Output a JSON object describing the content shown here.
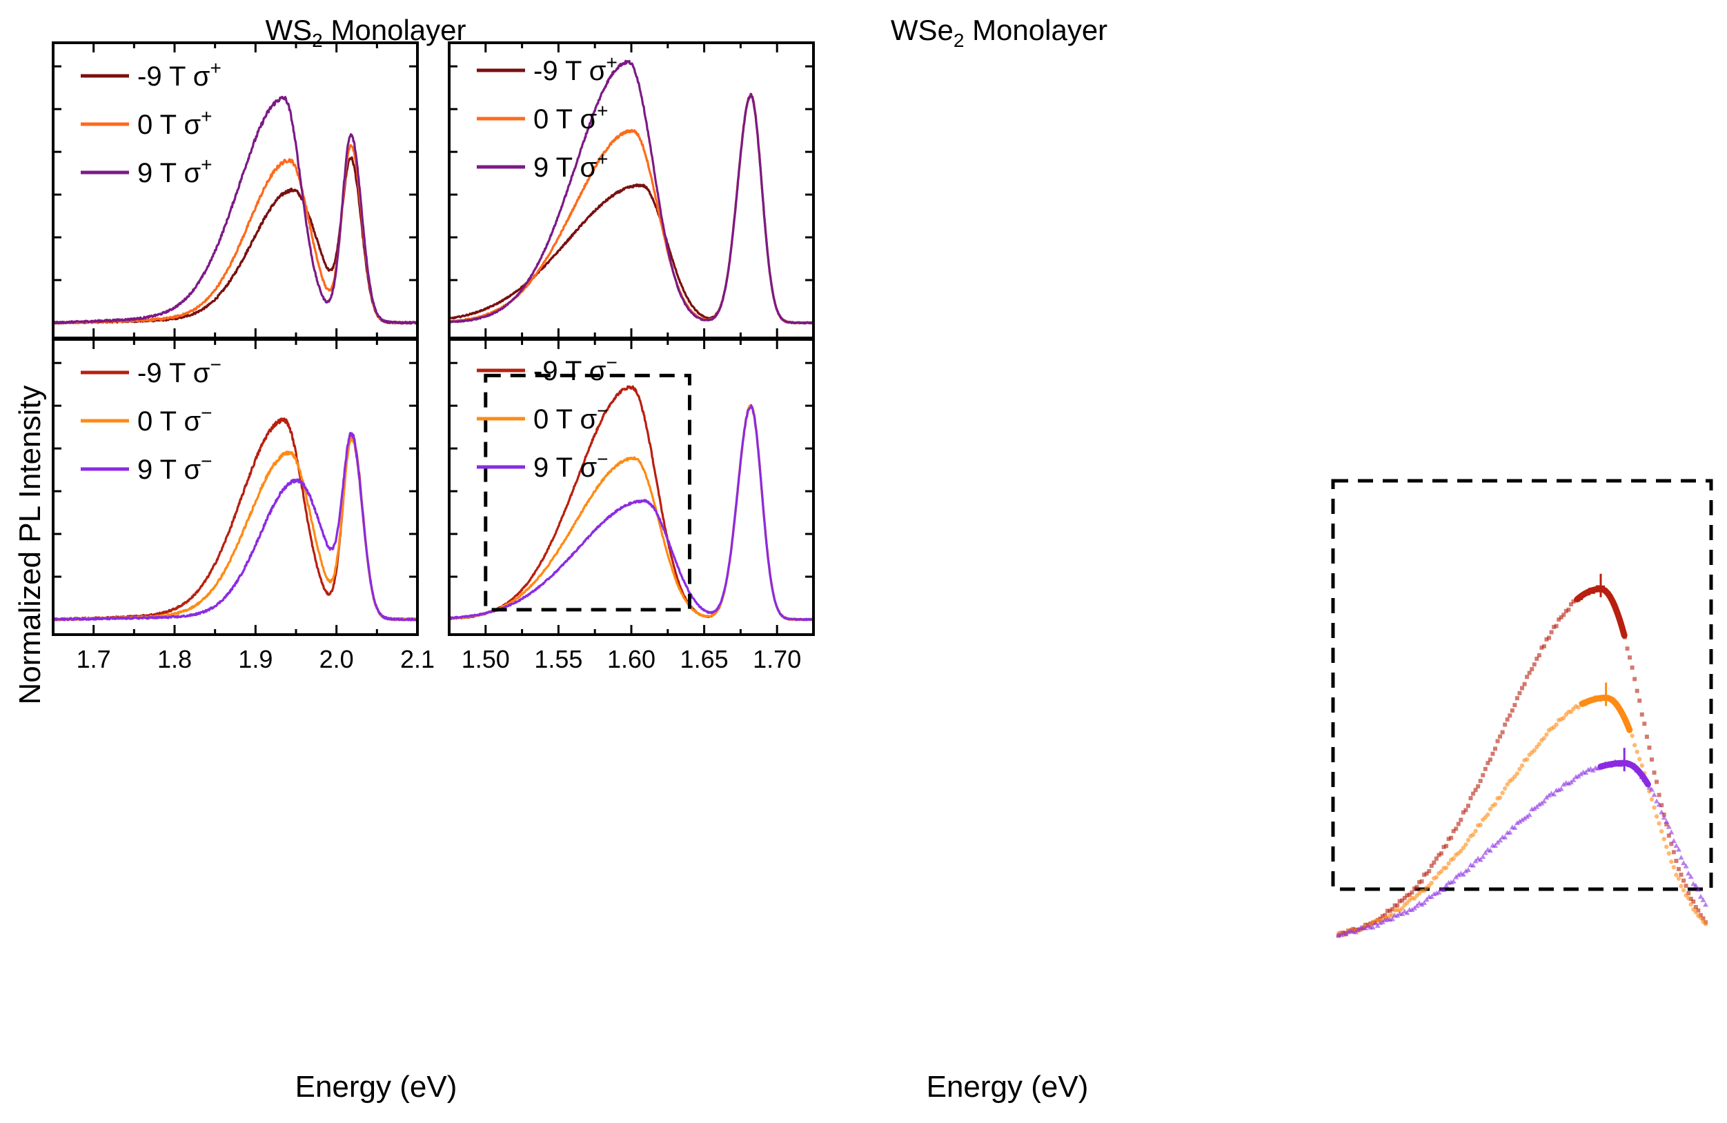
{
  "colors": {
    "m9p": "#7a0f0f",
    "zp": "#ff6a1a",
    "p9p": "#7c1a86",
    "m9m": "#b81f10",
    "zm": "#ff8a14",
    "p9m": "#8a2be2"
  },
  "chart_data": [
    {
      "id": "ws2_top",
      "type": "line",
      "title": "WS2 Monolayer",
      "title_main": "WS",
      "title_sub": "2",
      "title_rest": " Monolayer",
      "xlabel": "Energy (eV)",
      "ylabel": "Normalized PL Intensity",
      "xlim": [
        1.65,
        2.1
      ],
      "ylim": [
        0,
        1.1
      ],
      "xticks": [
        1.7,
        1.8,
        1.9,
        2.0,
        2.1
      ],
      "xtick_labels": [
        "1.7",
        "1.8",
        "1.9",
        "2.0",
        "2.1"
      ],
      "legend_position": "top-left",
      "series": [
        {
          "name": "-9 T σ+",
          "label_main": "-9 T σ",
          "label_sup": "+",
          "color_key": "m9p",
          "peaks": [
            {
              "center": 1.946,
              "amp": 0.54,
              "wl": 0.05,
              "wr": 0.03
            },
            {
              "center": 2.018,
              "amp": 0.66,
              "wl": 0.011,
              "wr": 0.013
            }
          ],
          "tail": 0.03
        },
        {
          "name": "0 T σ+",
          "label_main": "0 T σ",
          "label_sup": "+",
          "color_key": "zp",
          "peaks": [
            {
              "center": 1.942,
              "amp": 0.66,
              "wl": 0.05,
              "wr": 0.024
            },
            {
              "center": 2.018,
              "amp": 0.74,
              "wl": 0.011,
              "wr": 0.013
            }
          ],
          "tail": 0.04
        },
        {
          "name": "9 T σ+",
          "label_main": "9 T σ",
          "label_sup": "+",
          "color_key": "p9p",
          "peaks": [
            {
              "center": 1.935,
              "amp": 0.91,
              "wl": 0.055,
              "wr": 0.021
            },
            {
              "center": 2.018,
              "amp": 0.78,
              "wl": 0.011,
              "wr": 0.013
            }
          ],
          "tail": 0.06
        }
      ]
    },
    {
      "id": "wse2_top",
      "type": "line",
      "title": "WSe2 Monolayer",
      "title_main": "WSe",
      "title_sub": "2",
      "title_rest": " Monolayer",
      "xlabel": "Energy (eV)",
      "xlim": [
        1.475,
        1.725
      ],
      "ylim": [
        0,
        1.1
      ],
      "xticks": [
        1.5,
        1.55,
        1.6,
        1.65,
        1.7
      ],
      "xtick_labels": [
        "1.50",
        "1.55",
        "1.60",
        "1.65",
        "1.70"
      ],
      "legend_position": "top-left",
      "series": [
        {
          "name": "-9 T σ+",
          "label_main": "-9 T σ",
          "label_sup": "+",
          "color_key": "m9p",
          "peaks": [
            {
              "center": 1.607,
              "amp": 0.58,
              "wl": 0.05,
              "wr": 0.017
            },
            {
              "center": 1.682,
              "amp": 0.96,
              "wl": 0.009,
              "wr": 0.0075
            }
          ],
          "tail": 0.0
        },
        {
          "name": "0 T σ+",
          "label_main": "0 T σ",
          "label_sup": "+",
          "color_key": "zp",
          "peaks": [
            {
              "center": 1.601,
              "amp": 0.81,
              "wl": 0.04,
              "wr": 0.017
            },
            {
              "center": 1.682,
              "amp": 0.96,
              "wl": 0.009,
              "wr": 0.0075
            }
          ],
          "tail": 0.0
        },
        {
          "name": "9 T σ+",
          "label_main": "9 T σ",
          "label_sup": "+",
          "color_key": "p9p",
          "peaks": [
            {
              "center": 1.598,
              "amp": 1.1,
              "wl": 0.036,
              "wr": 0.017
            },
            {
              "center": 1.682,
              "amp": 0.96,
              "wl": 0.009,
              "wr": 0.0075
            }
          ],
          "tail": 0.0
        }
      ]
    },
    {
      "id": "ws2_bottom",
      "type": "line",
      "xlabel": "Energy (eV)",
      "xlim": [
        1.65,
        2.1
      ],
      "ylim": [
        0,
        1.1
      ],
      "xticks": [
        1.7,
        1.8,
        1.9,
        2.0,
        2.1
      ],
      "xtick_labels": [
        "1.7",
        "1.8",
        "1.9",
        "2.0",
        "2.1"
      ],
      "legend_position": "top-left",
      "series": [
        {
          "name": "-9 T σ−",
          "label_main": "-9 T σ",
          "label_sup": "−",
          "color_key": "m9m",
          "peaks": [
            {
              "center": 1.935,
              "amp": 0.81,
              "wl": 0.052,
              "wr": 0.024
            },
            {
              "center": 2.019,
              "amp": 0.77,
              "wl": 0.011,
              "wr": 0.013
            }
          ],
          "tail": 0.05
        },
        {
          "name": "0 T σ−",
          "label_main": "0 T σ",
          "label_sup": "−",
          "color_key": "zm",
          "peaks": [
            {
              "center": 1.942,
              "amp": 0.68,
              "wl": 0.05,
              "wr": 0.026
            },
            {
              "center": 2.019,
              "amp": 0.75,
              "wl": 0.011,
              "wr": 0.013
            }
          ],
          "tail": 0.035
        },
        {
          "name": "9 T σ−",
          "label_main": "9 T σ",
          "label_sup": "−",
          "color_key": "p9m",
          "peaks": [
            {
              "center": 1.951,
              "amp": 0.57,
              "wl": 0.045,
              "wr": 0.032
            },
            {
              "center": 2.019,
              "amp": 0.72,
              "wl": 0.011,
              "wr": 0.013
            }
          ],
          "tail": 0.025
        }
      ]
    },
    {
      "id": "wse2_bottom",
      "type": "line",
      "xlabel": "Energy (eV)",
      "xlim": [
        1.475,
        1.725
      ],
      "ylim": [
        0,
        1.1
      ],
      "xticks": [
        1.5,
        1.55,
        1.6,
        1.65,
        1.7
      ],
      "xtick_labels": [
        "1.50",
        "1.55",
        "1.60",
        "1.65",
        "1.70"
      ],
      "legend_position": "top-left",
      "highlight_box_x": [
        1.5,
        1.64
      ],
      "highlight_box_y": [
        0.05,
        1.0
      ],
      "series": [
        {
          "name": "-9 T σ−",
          "label_main": "-9 T σ",
          "label_sup": "−",
          "color_key": "m9m",
          "peaks": [
            {
              "center": 1.6,
              "amp": 0.98,
              "wl": 0.037,
              "wr": 0.017
            },
            {
              "center": 1.682,
              "amp": 0.9,
              "wl": 0.009,
              "wr": 0.0075
            }
          ],
          "tail": 0.0
        },
        {
          "name": "0 T σ−",
          "label_main": "0 T σ",
          "label_sup": "−",
          "color_key": "zm",
          "peaks": [
            {
              "center": 1.602,
              "amp": 0.68,
              "wl": 0.04,
              "wr": 0.017
            },
            {
              "center": 1.682,
              "amp": 0.9,
              "wl": 0.009,
              "wr": 0.0075
            }
          ],
          "tail": 0.0
        },
        {
          "name": "9 T σ−",
          "label_main": "9 T σ",
          "label_sup": "−",
          "color_key": "p9m",
          "peaks": [
            {
              "center": 1.609,
              "amp": 0.5,
              "wl": 0.045,
              "wr": 0.018
            },
            {
              "center": 1.682,
              "amp": 0.9,
              "wl": 0.009,
              "wr": 0.0075
            }
          ],
          "tail": 0.0
        }
      ]
    },
    {
      "id": "inset_zoom",
      "type": "scatter",
      "description_of_range": "zoom of the dashed region of the WSe2 σ− panel",
      "xlim": [
        1.5,
        1.64
      ],
      "ylim": [
        0.3,
        1.05
      ],
      "series": [
        {
          "name": "-9 T σ−",
          "color_key": "m9m",
          "marker": "square",
          "peak_center": 1.6
        },
        {
          "name": "0 T σ−",
          "color_key": "zm",
          "marker": "circle",
          "peak_center": 1.602
        },
        {
          "name": "9 T σ−",
          "color_key": "p9m",
          "marker": "triangle",
          "peak_center": 1.609
        }
      ]
    }
  ],
  "shared": {
    "ylabel": "Normalized PL Intensity"
  }
}
